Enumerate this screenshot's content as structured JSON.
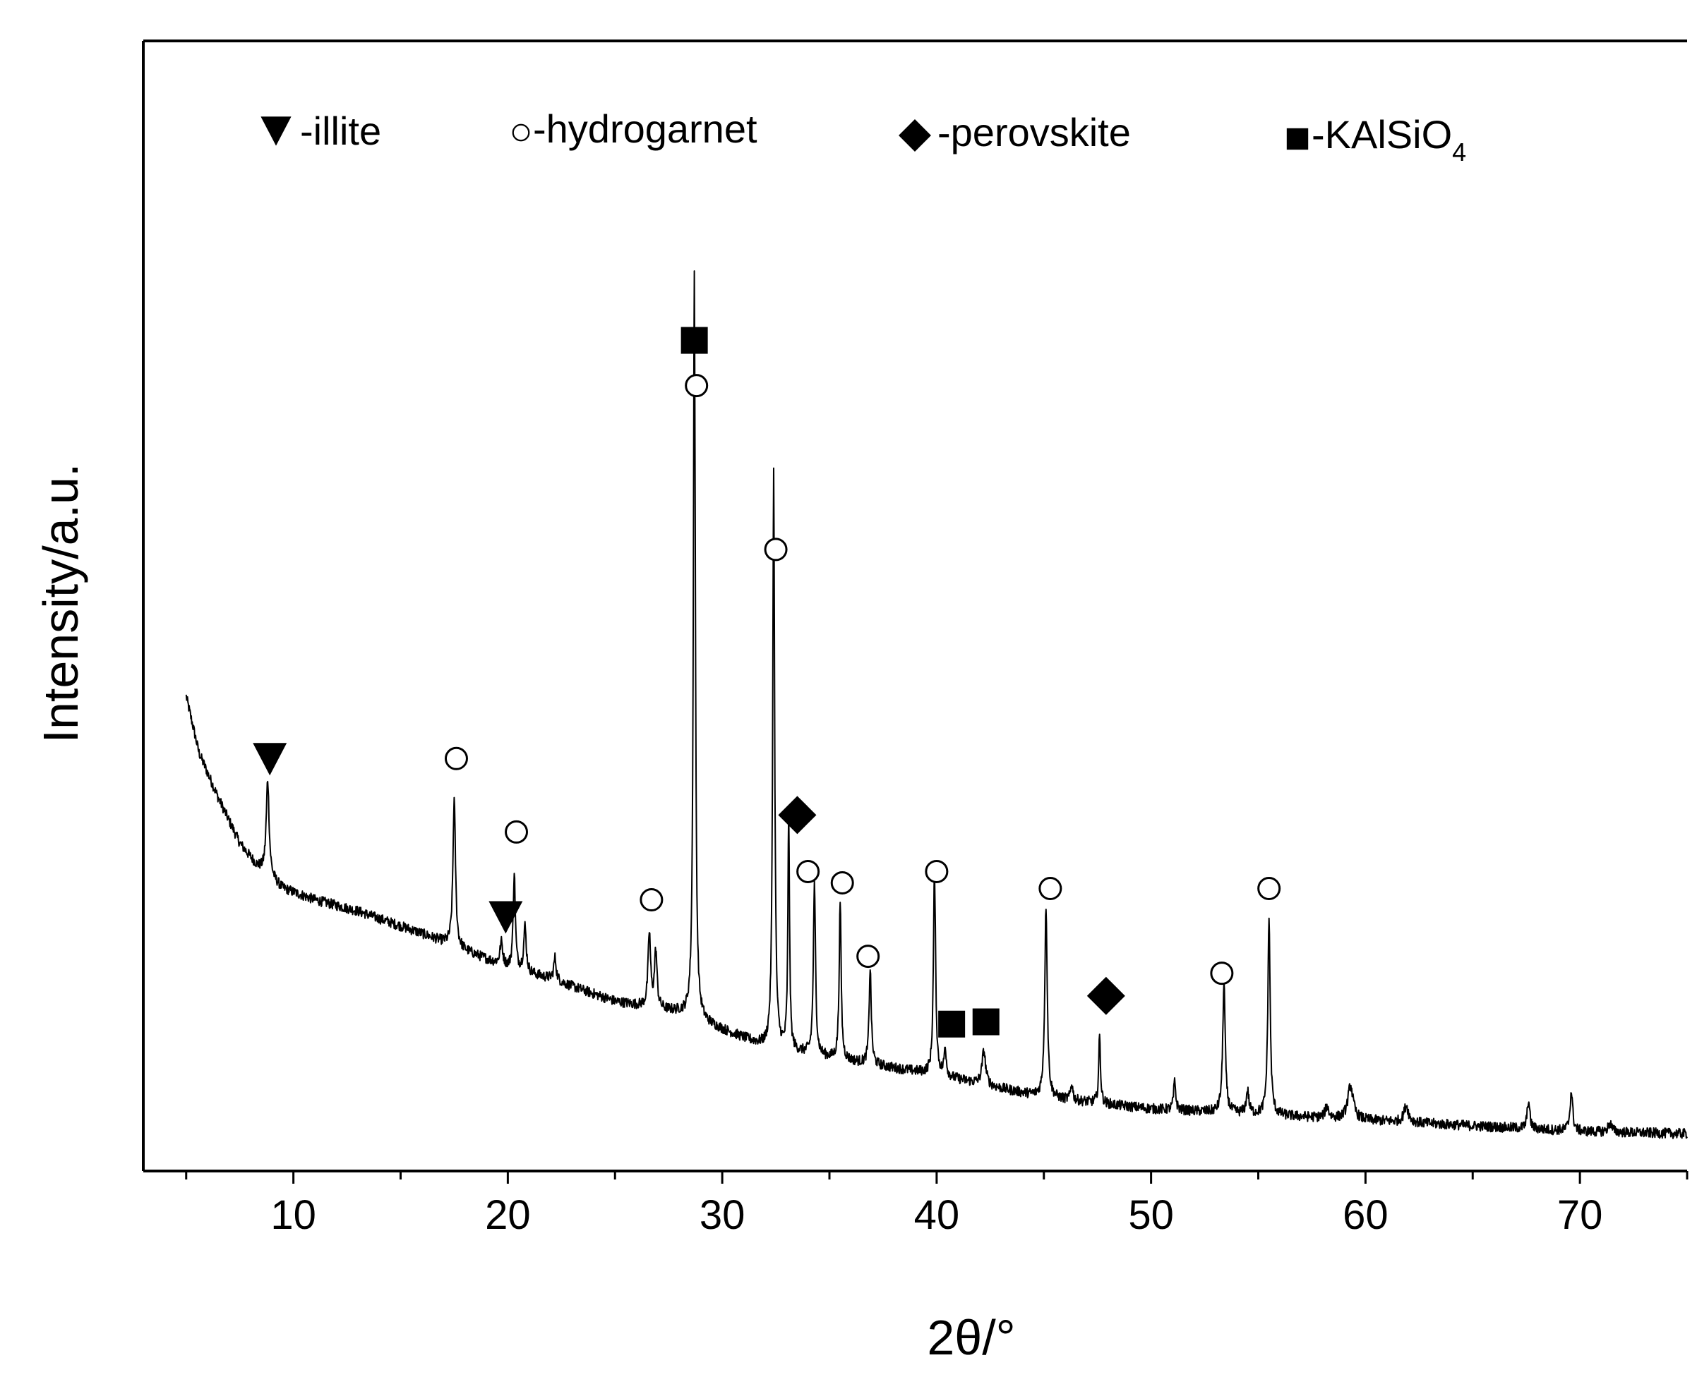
{
  "chart_data": {
    "type": "line",
    "title": "",
    "xlabel": "2θ/°",
    "ylabel": "Intensity/a.u.",
    "xlim": [
      3,
      75
    ],
    "ylim": [
      0,
      100
    ],
    "x_ticks": [
      10,
      20,
      30,
      40,
      50,
      60,
      70
    ],
    "grid": false,
    "legend": {
      "placement": "top",
      "entries": [
        {
          "symbol": "triangle-down-filled",
          "label": "-illite"
        },
        {
          "symbol": "circle-open",
          "label": "-hydrogarnet"
        },
        {
          "symbol": "diamond-filled",
          "label": "-perovskite"
        },
        {
          "symbol": "square-filled",
          "label": "-KAlSiO",
          "subscript": "4"
        }
      ]
    },
    "baseline": [
      {
        "x": 5.0,
        "y": 42.0
      },
      {
        "x": 5.6,
        "y": 37.0
      },
      {
        "x": 6.5,
        "y": 33.0
      },
      {
        "x": 7.5,
        "y": 29.0
      },
      {
        "x": 8.3,
        "y": 27.0
      },
      {
        "x": 9.5,
        "y": 25.0
      },
      {
        "x": 11.0,
        "y": 24.0
      },
      {
        "x": 13.0,
        "y": 23.0
      },
      {
        "x": 16.0,
        "y": 21.0
      },
      {
        "x": 18.0,
        "y": 19.5
      },
      {
        "x": 20.0,
        "y": 18.0
      },
      {
        "x": 22.0,
        "y": 17.0
      },
      {
        "x": 25.0,
        "y": 15.0
      },
      {
        "x": 28.0,
        "y": 14.0
      },
      {
        "x": 30.0,
        "y": 12.5
      },
      {
        "x": 32.0,
        "y": 11.0
      },
      {
        "x": 35.0,
        "y": 10.0
      },
      {
        "x": 40.0,
        "y": 8.5
      },
      {
        "x": 45.0,
        "y": 6.5
      },
      {
        "x": 50.0,
        "y": 5.5
      },
      {
        "x": 55.0,
        "y": 5.0
      },
      {
        "x": 60.0,
        "y": 4.5
      },
      {
        "x": 65.0,
        "y": 4.0
      },
      {
        "x": 70.0,
        "y": 3.5
      },
      {
        "x": 75.0,
        "y": 3.3
      }
    ],
    "peaks": [
      {
        "x": 8.8,
        "height": 8.5,
        "width": 0.16
      },
      {
        "x": 17.5,
        "height": 13.0,
        "width": 0.14
      },
      {
        "x": 19.7,
        "height": 2.0,
        "width": 0.15
      },
      {
        "x": 20.3,
        "height": 8.5,
        "width": 0.12
      },
      {
        "x": 20.8,
        "height": 4.0,
        "width": 0.14
      },
      {
        "x": 22.2,
        "height": 2.0,
        "width": 0.14
      },
      {
        "x": 26.6,
        "height": 6.5,
        "width": 0.14
      },
      {
        "x": 26.9,
        "height": 5.0,
        "width": 0.14
      },
      {
        "x": 28.7,
        "height": 66.0,
        "width": 0.11
      },
      {
        "x": 32.4,
        "height": 51.0,
        "width": 0.11
      },
      {
        "x": 33.1,
        "height": 21.0,
        "width": 0.09
      },
      {
        "x": 34.3,
        "height": 15.0,
        "width": 0.12
      },
      {
        "x": 35.5,
        "height": 14.0,
        "width": 0.11
      },
      {
        "x": 36.9,
        "height": 8.5,
        "width": 0.12
      },
      {
        "x": 39.9,
        "height": 18.0,
        "width": 0.12
      },
      {
        "x": 40.4,
        "height": 2.5,
        "width": 0.12
      },
      {
        "x": 42.2,
        "height": 3.0,
        "width": 0.2
      },
      {
        "x": 45.1,
        "height": 17.0,
        "width": 0.14
      },
      {
        "x": 46.3,
        "height": 1.5,
        "width": 0.12
      },
      {
        "x": 47.6,
        "height": 6.0,
        "width": 0.1
      },
      {
        "x": 51.1,
        "height": 2.5,
        "width": 0.12
      },
      {
        "x": 53.4,
        "height": 11.5,
        "width": 0.14
      },
      {
        "x": 54.5,
        "height": 2.0,
        "width": 0.15
      },
      {
        "x": 55.5,
        "height": 17.5,
        "width": 0.13
      },
      {
        "x": 58.2,
        "height": 1.0,
        "width": 0.2
      },
      {
        "x": 59.3,
        "height": 3.0,
        "width": 0.3
      },
      {
        "x": 61.9,
        "height": 1.5,
        "width": 0.25
      },
      {
        "x": 67.6,
        "height": 2.5,
        "width": 0.14
      },
      {
        "x": 69.6,
        "height": 3.5,
        "width": 0.15
      },
      {
        "x": 71.4,
        "height": 0.8,
        "width": 0.2
      }
    ],
    "noise_amplitude": 0.45,
    "annotations": [
      {
        "symbol": "triangle-down-filled",
        "x": 8.9,
        "y": 36.5
      },
      {
        "symbol": "circle-open",
        "x": 17.6,
        "y": 36.5
      },
      {
        "symbol": "circle-open",
        "x": 20.4,
        "y": 30.0
      },
      {
        "symbol": "triangle-down-filled",
        "x": 19.9,
        "y": 22.5
      },
      {
        "symbol": "circle-open",
        "x": 26.7,
        "y": 24.0
      },
      {
        "symbol": "square-filled",
        "x": 28.7,
        "y": 73.5
      },
      {
        "symbol": "circle-open",
        "x": 28.8,
        "y": 69.5
      },
      {
        "symbol": "circle-open",
        "x": 32.5,
        "y": 55.0
      },
      {
        "symbol": "diamond-filled",
        "x": 33.5,
        "y": 31.5
      },
      {
        "symbol": "circle-open",
        "x": 34.0,
        "y": 26.5
      },
      {
        "symbol": "circle-open",
        "x": 35.6,
        "y": 25.5
      },
      {
        "symbol": "circle-open",
        "x": 36.8,
        "y": 19.0
      },
      {
        "symbol": "circle-open",
        "x": 40.0,
        "y": 26.5
      },
      {
        "symbol": "square-filled",
        "x": 40.7,
        "y": 13.0
      },
      {
        "symbol": "square-filled",
        "x": 42.3,
        "y": 13.2
      },
      {
        "symbol": "circle-open",
        "x": 45.3,
        "y": 25.0
      },
      {
        "symbol": "diamond-filled",
        "x": 47.9,
        "y": 15.5
      },
      {
        "symbol": "circle-open",
        "x": 53.3,
        "y": 17.5
      },
      {
        "symbol": "circle-open",
        "x": 55.5,
        "y": 25.0
      }
    ]
  }
}
